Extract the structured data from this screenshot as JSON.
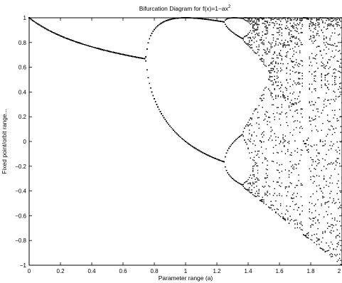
{
  "chart_data": {
    "type": "scatter",
    "title": "Bifurcation Diagram for f(x)=1−ax",
    "title_superscript": "2",
    "xlabel": "Parameter range (a)",
    "ylabel": "Fixed point/orbit range...",
    "xlim": [
      0,
      2
    ],
    "ylim": [
      -1,
      1
    ],
    "x_ticks": [
      0,
      0.2,
      0.4,
      0.6,
      0.8,
      1,
      1.2,
      1.4,
      1.6,
      1.8,
      2
    ],
    "x_tick_labels": [
      "0",
      "0.2",
      "0.4",
      "0.6",
      "0.8",
      "1",
      "1.2",
      "1.4",
      "1.6",
      "1.8",
      "2"
    ],
    "y_ticks": [
      -1,
      -0.8,
      -0.6,
      -0.4,
      -0.2,
      0,
      0.2,
      0.4,
      0.6,
      0.8,
      1
    ],
    "y_tick_labels": [
      "−1",
      "−0.8",
      "−0.6",
      "−0.4",
      "−0.2",
      "0",
      "0.2",
      "0.4",
      "0.6",
      "0.8",
      "1"
    ],
    "grid": false,
    "marker_color": "#000000",
    "map": "x -> 1 - a*x^2",
    "a_range": [
      0,
      2
    ],
    "branches": [
      {
        "label": "fixed point",
        "a_range": [
          0,
          0.75
        ],
        "points": [
          [
            0,
            1
          ],
          [
            0.2,
            0.854
          ],
          [
            0.4,
            0.766
          ],
          [
            0.6,
            0.703
          ],
          [
            0.75,
            0.667
          ]
        ]
      },
      {
        "label": "period-2 upper",
        "a_range": [
          0.75,
          1.25
        ],
        "points": [
          [
            0.8,
            0.856
          ],
          [
            0.9,
            0.948
          ],
          [
            1.0,
            1.0
          ],
          [
            1.1,
            1.0
          ],
          [
            1.2,
            0.993
          ]
        ]
      },
      {
        "label": "period-2 lower",
        "a_range": [
          0.75,
          1.25
        ],
        "points": [
          [
            0.8,
            0.4
          ],
          [
            0.9,
            0.163
          ],
          [
            1.0,
            0.0
          ],
          [
            1.1,
            -0.094
          ],
          [
            1.2,
            -0.16
          ]
        ]
      }
    ],
    "chaotic_region": {
      "a_range": [
        1.4,
        2
      ],
      "x_min_at_a": "1 - a",
      "x_max": 1,
      "period3_window_a": [
        1.75,
        1.79
      ]
    }
  }
}
